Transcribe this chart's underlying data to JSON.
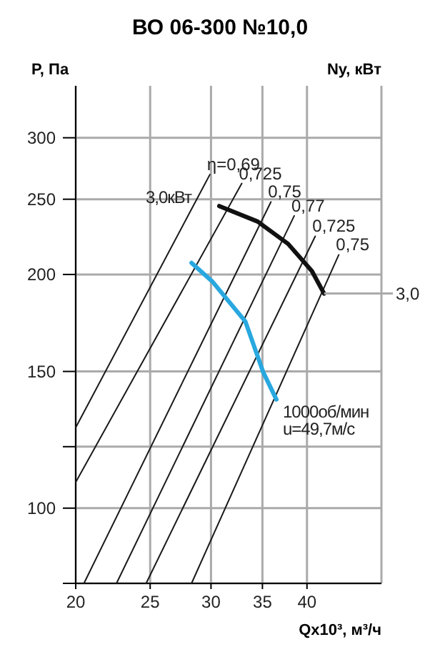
{
  "chart_data": {
    "type": "line",
    "title": "ВО 06-300 №10,0",
    "xlabel": "Qx10³, м³/ч",
    "ylabel": "P, Па",
    "y2label": "Ny, кВт",
    "log": "xy",
    "grid": true,
    "marker": "none",
    "line_style": "solid",
    "xlim": [
      20,
      50
    ],
    "xticks": [
      20,
      25,
      30,
      35,
      40
    ],
    "ylim": [
      80,
      350
    ],
    "yticks": [
      {
        "value": 80,
        "label": null
      },
      100,
      {
        "value": 120,
        "label": null
      },
      150,
      200,
      250,
      300
    ],
    "series": [
      {
        "name": "η=0,69",
        "color": "#1a1a1a",
        "x": [
          20,
          29.9
        ],
        "values": [
          127,
          269
        ]
      },
      {
        "name": "0,725",
        "color": "#1a1a1a",
        "x": [
          20,
          32.9
        ],
        "values": [
          108,
          262
        ]
      },
      {
        "name": "0,75",
        "color": "#1a1a1a",
        "x": [
          20.5,
          35.9
        ],
        "values": [
          80,
          248
        ]
      },
      {
        "name": "0,77",
        "color": "#1a1a1a",
        "x": [
          22.6,
          38.5
        ],
        "values": [
          80,
          238
        ]
      },
      {
        "name": "0,725",
        "color": "#1a1a1a",
        "x": [
          24.7,
          41
        ],
        "values": [
          80,
          224
        ]
      },
      {
        "name": "0,75",
        "color": "#1a1a1a",
        "x": [
          28.3,
          44
        ],
        "values": [
          80,
          212
        ]
      },
      {
        "color": "#111111",
        "x": [
          30.75,
          34.5,
          37.8,
          40.6,
          42.1
        ],
        "values": [
          245,
          234,
          219,
          202,
          189
        ]
      },
      {
        "color": "#29a8e0",
        "x": [
          28.3,
          30.1,
          33.25,
          35.1,
          36.5
        ],
        "values": [
          207,
          196,
          174,
          149.5,
          138
        ]
      }
    ],
    "annotations": [
      "3,0кВт",
      {
        "text": "3,0",
        "x": 42.1,
        "y": 189
      },
      "1000об/мин",
      "u=49,7м/с"
    ]
  }
}
